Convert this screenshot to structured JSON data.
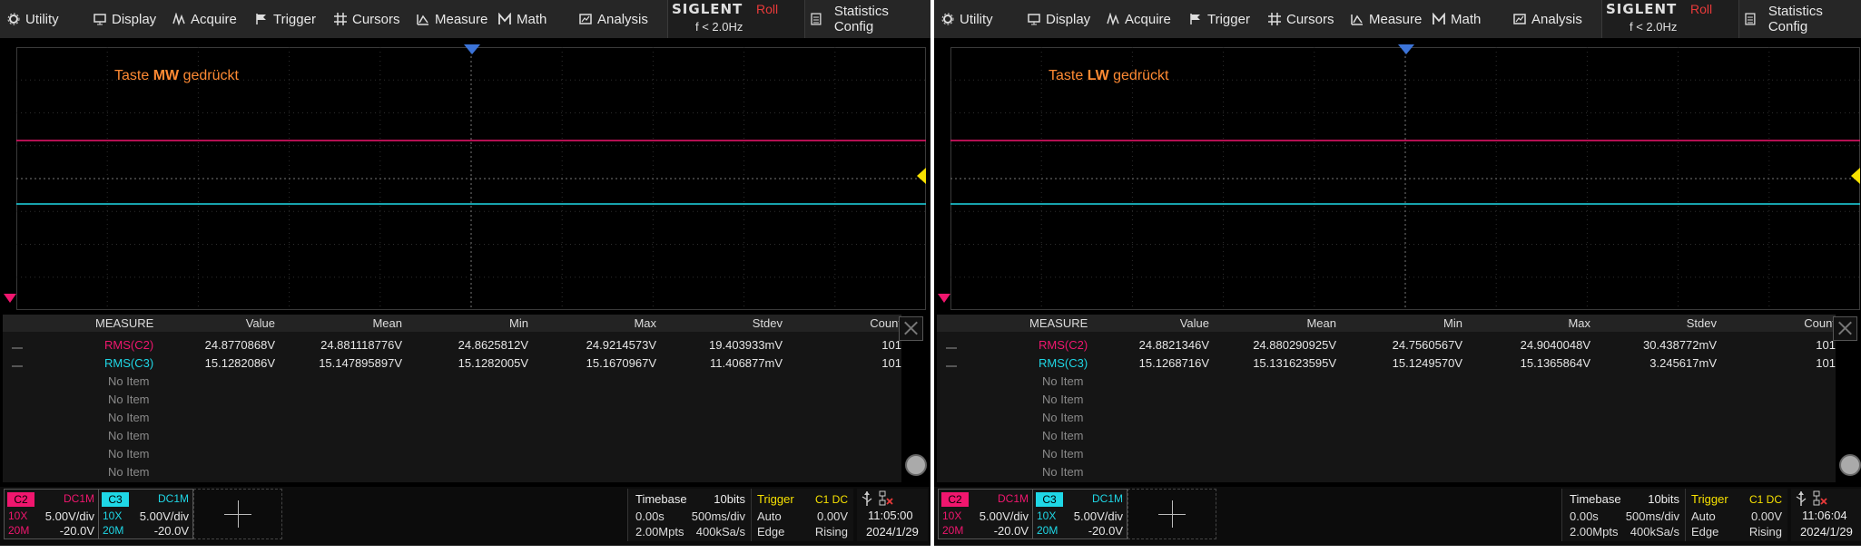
{
  "screens": [
    {
      "menu": [
        "Utility",
        "Display",
        "Acquire",
        "Trigger",
        "Cursors",
        "Measure",
        "Math",
        "Analysis"
      ],
      "brand": {
        "logo": "SIGLENT",
        "mode": "Roll",
        "freq": "f < 2.0Hz"
      },
      "stat_config": "Statistics Config",
      "annotation": {
        "pre": "Taste ",
        "bold": "MW",
        "post": " gedrückt"
      },
      "measure": {
        "headers": [
          "MEASURE",
          "Value",
          "Mean",
          "Min",
          "Max",
          "Stdev",
          "Count"
        ],
        "rows": [
          {
            "name": "RMS(C2)",
            "value": "24.8770868V",
            "mean": "24.881118776V",
            "min": "24.8625812V",
            "max": "24.9214573V",
            "stdev": "19.403933mV",
            "count": "101"
          },
          {
            "name": "RMS(C3)",
            "value": "15.1282086V",
            "mean": "15.147895897V",
            "min": "15.1282005V",
            "max": "15.1670967V",
            "stdev": "11.406877mV",
            "count": "101"
          }
        ],
        "no_item": "No Item"
      },
      "channels": [
        {
          "tag": "C2",
          "coupling": "DC1M",
          "probe": "10X",
          "bw": "20M",
          "scale": "5.00V/div",
          "offset": "-20.0V"
        },
        {
          "tag": "C3",
          "coupling": "DC1M",
          "probe": "10X",
          "bw": "20M",
          "scale": "5.00V/div",
          "offset": "-20.0V"
        }
      ],
      "timebase": {
        "label": "Timebase",
        "bits": "10bits",
        "delay": "0.00s",
        "tdiv": "500ms/div",
        "mpts": "2.00Mpts",
        "rate": "400kSa/s"
      },
      "trigger": {
        "label": "Trigger",
        "src": "C1 DC",
        "mode": "Auto",
        "level": "0.00V",
        "type": "Edge",
        "slope": "Rising"
      },
      "clock": {
        "time": "11:05:00",
        "date": "2024/1/29"
      }
    },
    {
      "menu": [
        "Utility",
        "Display",
        "Acquire",
        "Trigger",
        "Cursors",
        "Measure",
        "Math",
        "Analysis"
      ],
      "brand": {
        "logo": "SIGLENT",
        "mode": "Roll",
        "freq": "f < 2.0Hz"
      },
      "stat_config": "Statistics Config",
      "annotation": {
        "pre": "Taste ",
        "bold": "LW",
        "post": " gedrückt"
      },
      "measure": {
        "headers": [
          "MEASURE",
          "Value",
          "Mean",
          "Min",
          "Max",
          "Stdev",
          "Count"
        ],
        "rows": [
          {
            "name": "RMS(C2)",
            "value": "24.8821346V",
            "mean": "24.880290925V",
            "min": "24.7560567V",
            "max": "24.9040048V",
            "stdev": "30.438772mV",
            "count": "101"
          },
          {
            "name": "RMS(C3)",
            "value": "15.1268716V",
            "mean": "15.131623595V",
            "min": "15.1249570V",
            "max": "15.1365864V",
            "stdev": "3.245617mV",
            "count": "101"
          }
        ],
        "no_item": "No Item"
      },
      "channels": [
        {
          "tag": "C2",
          "coupling": "DC1M",
          "probe": "10X",
          "bw": "20M",
          "scale": "5.00V/div",
          "offset": "-20.0V"
        },
        {
          "tag": "C3",
          "coupling": "DC1M",
          "probe": "10X",
          "bw": "20M",
          "scale": "5.00V/div",
          "offset": "-20.0V"
        }
      ],
      "timebase": {
        "label": "Timebase",
        "bits": "10bits",
        "delay": "0.00s",
        "tdiv": "500ms/div",
        "mpts": "2.00Mpts",
        "rate": "400kSa/s"
      },
      "trigger": {
        "label": "Trigger",
        "src": "C1 DC",
        "mode": "Auto",
        "level": "0.00V",
        "type": "Edge",
        "slope": "Rising"
      },
      "clock": {
        "time": "11:06:04",
        "date": "2024/1/29"
      }
    }
  ],
  "colors": {
    "c2": "#f0166e",
    "c3": "#1fd7e6",
    "trigger": "#f7e100",
    "menu_bg": "#262626",
    "annotation": "#ff8a33"
  },
  "icons": [
    "gear-icon",
    "display-icon",
    "acquire-icon",
    "trigger-flag-icon",
    "cursors-icon",
    "measure-icon",
    "math-icon",
    "analysis-icon",
    "document-icon",
    "usb-icon"
  ]
}
